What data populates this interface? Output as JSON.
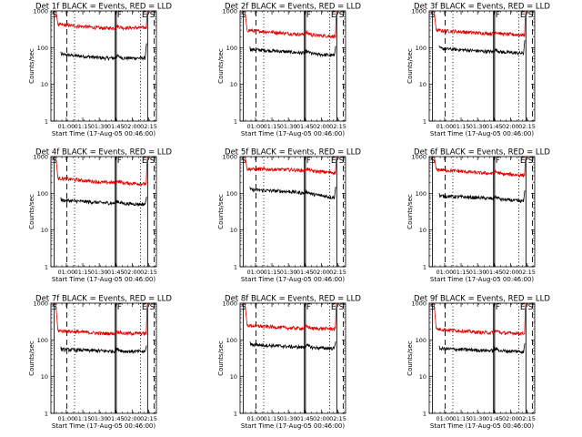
{
  "colors": {
    "events": "#000000",
    "lld": "#e00000",
    "background": "#ffffff"
  },
  "shared": {
    "xlabel": "Start Time (17-Aug-05 00:46:00)",
    "ylabel": "Counts/sec",
    "xtick_labels": [
      "01:00",
      "01:15",
      "01:30",
      "01:45",
      "02:00",
      "02:15"
    ],
    "ytick_labels": [
      "1",
      "10",
      "100",
      "1000"
    ],
    "marker_labels": {
      "start": "S",
      "flare": "F",
      "end": "E",
      "stop": "S"
    }
  },
  "chart_data": [
    {
      "type": "line",
      "title": "Det 1f BLACK = Events, RED = LLD",
      "x_range_min": [
        0,
        96
      ],
      "y_range": [
        1,
        1000
      ],
      "y_scale": "log",
      "markers": {
        "S": 3,
        "dashed1": 14.5,
        "dotted1": 21.5,
        "F": 59,
        "dotted2": 81.5,
        "E": 88,
        "S2": 89.5,
        "dashed2": 94
      },
      "series": [
        {
          "name": "Events",
          "color": "#000000",
          "x_min": [
            9,
            87
          ],
          "level_start": 65,
          "level_mid": 52,
          "level_end": 52,
          "rise_to": 130
        },
        {
          "name": "LLD",
          "color": "#e00000",
          "x_min": [
            4,
            88
          ],
          "start_peak": 1300,
          "level_start": 430,
          "level_mid": 340,
          "level_end": 350,
          "rise_to": 1300
        }
      ]
    },
    {
      "type": "line",
      "title": "Det 2f BLACK = Events, RED = LLD",
      "x_range_min": [
        0,
        96
      ],
      "y_range": [
        1,
        1000
      ],
      "y_scale": "log",
      "markers": {
        "S": 3,
        "dashed1": 14.5,
        "dotted1": 21.5,
        "F": 59,
        "dotted2": 81.5,
        "E": 88,
        "S2": 89.5,
        "dashed2": 94
      },
      "series": [
        {
          "name": "Events",
          "color": "#000000",
          "x_min": [
            9,
            87
          ],
          "level_start": 90,
          "level_mid": 75,
          "level_end": 60,
          "rise_to": 110
        },
        {
          "name": "LLD",
          "color": "#e00000",
          "x_min": [
            4,
            88
          ],
          "start_peak": 1300,
          "level_start": 300,
          "level_mid": 240,
          "level_end": 200,
          "rise_to": 1300
        }
      ]
    },
    {
      "type": "line",
      "title": "Det 3f BLACK = Events, RED = LLD",
      "x_range_min": [
        0,
        96
      ],
      "y_range": [
        1,
        1000
      ],
      "y_scale": "log",
      "markers": {
        "S": 3,
        "dashed1": 14.5,
        "dotted1": 21.5,
        "F": 59,
        "dotted2": 81.5,
        "E": 88,
        "S2": 89.5,
        "dashed2": 94
      },
      "series": [
        {
          "name": "Events",
          "color": "#000000",
          "x_min": [
            9,
            87
          ],
          "level_start": 95,
          "level_mid": 80,
          "level_end": 70,
          "rise_to": 160
        },
        {
          "name": "LLD",
          "color": "#e00000",
          "x_min": [
            4,
            88
          ],
          "start_peak": 1300,
          "level_start": 300,
          "level_mid": 250,
          "level_end": 220,
          "rise_to": 1300
        }
      ]
    },
    {
      "type": "line",
      "title": "Det 4f BLACK = Events, RED = LLD",
      "x_range_min": [
        0,
        96
      ],
      "y_range": [
        1,
        1000
      ],
      "y_scale": "log",
      "markers": {
        "S": 3,
        "dashed1": 14.5,
        "dotted1": 21.5,
        "F": 59,
        "dotted2": 81.5,
        "E": 88,
        "S2": 89.5,
        "dashed2": 94
      },
      "series": [
        {
          "name": "Events",
          "color": "#000000",
          "x_min": [
            9,
            87
          ],
          "level_start": 65,
          "level_mid": 55,
          "level_end": 50,
          "rise_to": 80
        },
        {
          "name": "LLD",
          "color": "#e00000",
          "x_min": [
            4,
            88
          ],
          "start_peak": 1300,
          "level_start": 260,
          "level_mid": 200,
          "level_end": 180,
          "rise_to": 1300
        }
      ]
    },
    {
      "type": "line",
      "title": "Det 5f BLACK = Events, RED = LLD",
      "x_range_min": [
        0,
        96
      ],
      "y_range": [
        1,
        1000
      ],
      "y_scale": "log",
      "markers": {
        "S": 3,
        "dashed1": 14.5,
        "dotted1": 21.5,
        "F": 59,
        "dotted2": 81.5,
        "E": 88,
        "S2": 89.5,
        "dashed2": 94
      },
      "series": [
        {
          "name": "Events",
          "color": "#000000",
          "x_min": [
            9,
            87
          ],
          "level_start": 125,
          "level_mid": 110,
          "level_end": 75,
          "rise_to": 150
        },
        {
          "name": "LLD",
          "color": "#e00000",
          "x_min": [
            4,
            88
          ],
          "start_peak": 1300,
          "level_start": 460,
          "level_mid": 440,
          "level_end": 360,
          "rise_to": 1300
        }
      ]
    },
    {
      "type": "line",
      "title": "Det 6f BLACK = Events, RED = LLD",
      "x_range_min": [
        0,
        96
      ],
      "y_range": [
        1,
        1000
      ],
      "y_scale": "log",
      "markers": {
        "S": 3,
        "dashed1": 14.5,
        "dotted1": 21.5,
        "F": 59,
        "dotted2": 81.5,
        "E": 88,
        "S2": 89.5,
        "dashed2": 94
      },
      "series": [
        {
          "name": "Events",
          "color": "#000000",
          "x_min": [
            9,
            87
          ],
          "level_start": 85,
          "level_mid": 75,
          "level_end": 60,
          "rise_to": 120
        },
        {
          "name": "LLD",
          "color": "#e00000",
          "x_min": [
            4,
            88
          ],
          "start_peak": 1300,
          "level_start": 450,
          "level_mid": 360,
          "level_end": 310,
          "rise_to": 1300
        }
      ]
    },
    {
      "type": "line",
      "title": "Det 7f BLACK = Events, RED = LLD",
      "x_range_min": [
        0,
        96
      ],
      "y_range": [
        1,
        1000
      ],
      "y_scale": "log",
      "markers": {
        "S": 3,
        "dashed1": 14.5,
        "dotted1": 21.5,
        "F": 59,
        "dotted2": 81.5,
        "E": 88,
        "S2": 89.5,
        "dashed2": 94
      },
      "series": [
        {
          "name": "Events",
          "color": "#000000",
          "x_min": [
            9,
            87
          ],
          "level_start": 55,
          "level_mid": 50,
          "level_end": 48,
          "rise_to": 70
        },
        {
          "name": "LLD",
          "color": "#e00000",
          "x_min": [
            4,
            88
          ],
          "start_peak": 1300,
          "level_start": 180,
          "level_mid": 150,
          "level_end": 150,
          "rise_to": 1300
        }
      ]
    },
    {
      "type": "line",
      "title": "Det 8f BLACK = Events, RED = LLD",
      "x_range_min": [
        0,
        96
      ],
      "y_range": [
        1,
        1000
      ],
      "y_scale": "log",
      "markers": {
        "S": 3,
        "dashed1": 14.5,
        "dotted1": 21.5,
        "F": 59,
        "dotted2": 81.5,
        "E": 88,
        "S2": 89.5,
        "dashed2": 94
      },
      "series": [
        {
          "name": "Events",
          "color": "#000000",
          "x_min": [
            9,
            87
          ],
          "level_start": 75,
          "level_mid": 65,
          "level_end": 58,
          "rise_to": 90
        },
        {
          "name": "LLD",
          "color": "#e00000",
          "x_min": [
            4,
            88
          ],
          "start_peak": 1300,
          "level_start": 250,
          "level_mid": 210,
          "level_end": 200,
          "rise_to": 1300
        }
      ]
    },
    {
      "type": "line",
      "title": "Det 9f BLACK = Events, RED = LLD",
      "x_range_min": [
        0,
        96
      ],
      "y_range": [
        1,
        1000
      ],
      "y_scale": "log",
      "markers": {
        "S": 3,
        "dashed1": 14.5,
        "dotted1": 21.5,
        "F": 59,
        "dotted2": 81.5,
        "E": 88,
        "S2": 89.5,
        "dashed2": 94
      },
      "series": [
        {
          "name": "Events",
          "color": "#000000",
          "x_min": [
            9,
            87
          ],
          "level_start": 58,
          "level_mid": 52,
          "level_end": 48,
          "rise_to": 80
        },
        {
          "name": "LLD",
          "color": "#e00000",
          "x_min": [
            4,
            88
          ],
          "start_peak": 1300,
          "level_start": 200,
          "level_mid": 160,
          "level_end": 150,
          "rise_to": 1300
        }
      ]
    }
  ]
}
